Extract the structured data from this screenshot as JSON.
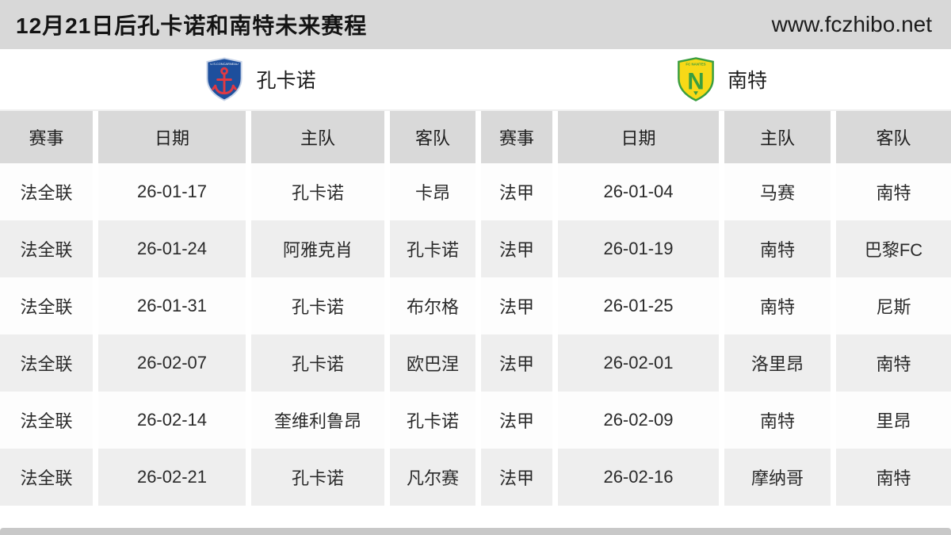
{
  "page": {
    "title": "12月21日后孔卡诺和南特未来赛程",
    "site": "www.fczhibo.net"
  },
  "teams": {
    "left": {
      "name": "孔卡诺",
      "logo": "concarneau-shield-anchor-icon",
      "logo_text": "U.S.CONCARNEAU"
    },
    "right": {
      "name": "南特",
      "logo": "nantes-shield-n-icon",
      "logo_text": "FC NANTES",
      "logo_letter": "N"
    }
  },
  "table": {
    "column_headers": [
      "赛事",
      "日期",
      "主队",
      "客队",
      "赛事",
      "日期",
      "主队",
      "客队"
    ],
    "rows": [
      [
        "法全联",
        "26-01-17",
        "孔卡诺",
        "卡昂",
        "法甲",
        "26-01-04",
        "马赛",
        "南特"
      ],
      [
        "法全联",
        "26-01-24",
        "阿雅克肖",
        "孔卡诺",
        "法甲",
        "26-01-19",
        "南特",
        "巴黎FC"
      ],
      [
        "法全联",
        "26-01-31",
        "孔卡诺",
        "布尔格",
        "法甲",
        "26-01-25",
        "南特",
        "尼斯"
      ],
      [
        "法全联",
        "26-02-07",
        "孔卡诺",
        "欧巴涅",
        "法甲",
        "26-02-01",
        "洛里昂",
        "南特"
      ],
      [
        "法全联",
        "26-02-14",
        "奎维利鲁昂",
        "孔卡诺",
        "法甲",
        "26-02-09",
        "南特",
        "里昂"
      ],
      [
        "法全联",
        "26-02-21",
        "孔卡诺",
        "凡尔赛",
        "法甲",
        "26-02-16",
        "摩纳哥",
        "南特"
      ]
    ]
  },
  "colors": {
    "topbar_bg": "#d8d8d8",
    "header_row_bg": "#d9d9d9",
    "row_alt_bg": "#eeeeee",
    "bottom_bar": "#c8c8c8",
    "concarneau_blue": "#1d4f9d",
    "concarneau_red": "#e03a44",
    "nantes_yellow": "#f7d917",
    "nantes_green": "#3a9e3f"
  }
}
